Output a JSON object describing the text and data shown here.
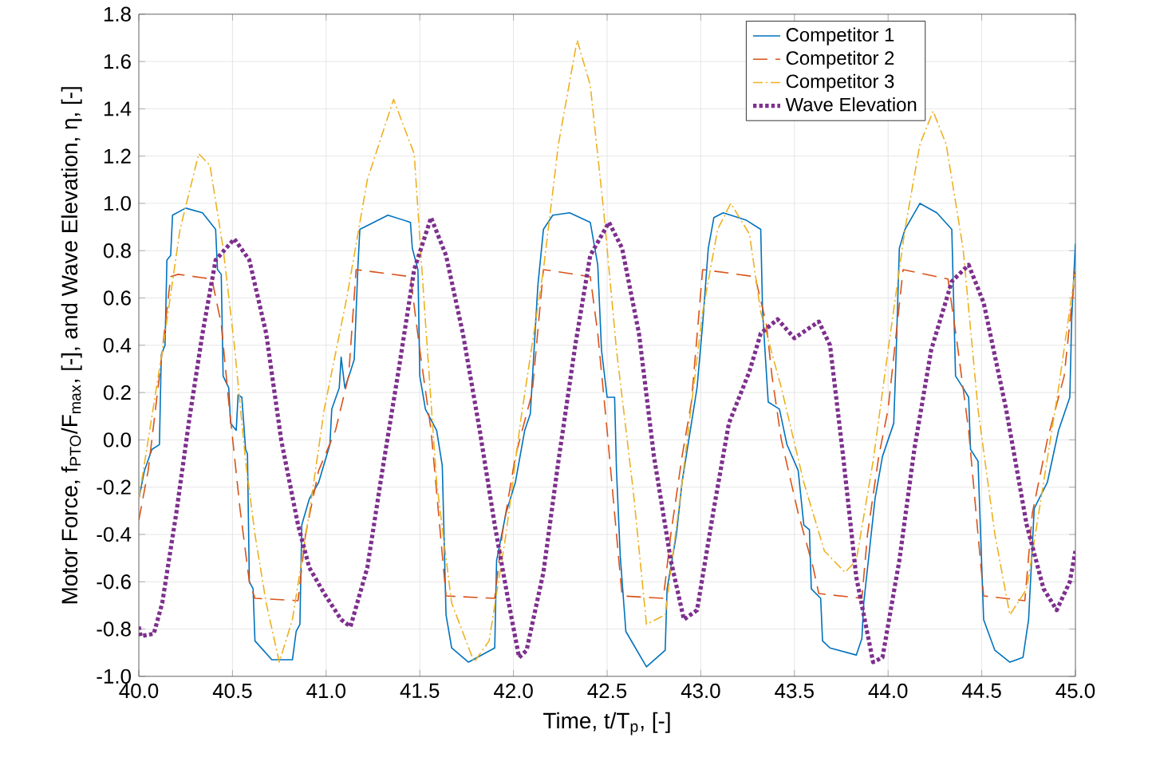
{
  "chart_data": {
    "type": "line",
    "xlabel": "Time, t/T$_{p}$, [-]",
    "ylabel": "Motor Force, f$_{PTO}$/F$_{max}$, [-], and Wave Elevation, η, [-]",
    "xlim": [
      40,
      45
    ],
    "ylim": [
      -1.0,
      1.8
    ],
    "xticks": [
      {
        "value": 40,
        "label": "40.0"
      },
      {
        "value": 40.5,
        "label": "40.5"
      },
      {
        "value": 41,
        "label": "41.0"
      },
      {
        "value": 41.5,
        "label": "41.5"
      },
      {
        "value": 42,
        "label": "42.0"
      },
      {
        "value": 42.5,
        "label": "42.5"
      },
      {
        "value": 43,
        "label": "43.0"
      },
      {
        "value": 43.5,
        "label": "43.5"
      },
      {
        "value": 44,
        "label": "44.0"
      },
      {
        "value": 44.5,
        "label": "44.5"
      },
      {
        "value": 45,
        "label": "45.0"
      }
    ],
    "yticks": [
      {
        "value": -1.0,
        "label": "-1.0"
      },
      {
        "value": -0.8,
        "label": "-0.8"
      },
      {
        "value": -0.6,
        "label": "-0.6"
      },
      {
        "value": -0.4,
        "label": "-0.4"
      },
      {
        "value": -0.2,
        "label": "-0.2"
      },
      {
        "value": 0,
        "label": "0.0"
      },
      {
        "value": 0.2,
        "label": "0.2"
      },
      {
        "value": 0.4,
        "label": "0.4"
      },
      {
        "value": 0.6,
        "label": "0.6"
      },
      {
        "value": 0.8,
        "label": "0.8"
      },
      {
        "value": 1.0,
        "label": "1.0"
      },
      {
        "value": 1.2,
        "label": "1.2"
      },
      {
        "value": 1.4,
        "label": "1.4"
      },
      {
        "value": 1.6,
        "label": "1.6"
      },
      {
        "value": 1.8,
        "label": "1.8"
      }
    ],
    "grid": true,
    "legend": "top right",
    "series": [
      {
        "name": "Competitor 1",
        "color": "#0072bd",
        "line_style": "solid",
        "x": [
          40.0,
          40.03,
          40.07,
          40.11,
          40.12,
          40.14,
          40.15,
          40.17,
          40.18,
          40.25,
          40.34,
          40.41,
          40.42,
          40.44,
          40.45,
          40.48,
          40.49,
          40.52,
          40.53,
          40.55,
          40.57,
          40.58,
          40.59,
          40.61,
          40.62,
          40.71,
          40.82,
          40.84,
          40.86,
          40.87,
          40.91,
          40.96,
          41.02,
          41.03,
          41.07,
          41.08,
          41.1,
          41.13,
          41.15,
          41.17,
          41.18,
          41.33,
          41.45,
          41.46,
          41.49,
          41.5,
          41.53,
          41.59,
          41.62,
          41.64,
          41.67,
          41.76,
          41.9,
          41.91,
          41.96,
          42.01,
          42.06,
          42.09,
          42.13,
          42.16,
          42.21,
          42.3,
          42.41,
          42.45,
          42.47,
          42.5,
          42.54,
          42.55,
          42.57,
          42.6,
          42.71,
          42.81,
          42.82,
          42.87,
          42.9,
          42.94,
          42.98,
          43.01,
          43.04,
          43.07,
          43.12,
          43.24,
          43.32,
          43.33,
          43.36,
          43.42,
          43.46,
          43.52,
          43.55,
          43.58,
          43.59,
          43.64,
          43.65,
          43.69,
          43.83,
          43.86,
          43.87,
          43.93,
          43.97,
          44.03,
          44.04,
          44.06,
          44.09,
          44.17,
          44.26,
          44.34,
          44.36,
          44.4,
          44.43,
          44.44,
          44.48,
          44.51,
          44.57,
          44.65,
          44.72,
          44.75,
          44.78,
          44.85,
          44.91,
          44.97,
          44.98,
          45.0
        ],
        "values": [
          -0.25,
          -0.13,
          -0.04,
          -0.02,
          0.36,
          0.4,
          0.76,
          0.78,
          0.95,
          0.98,
          0.96,
          0.89,
          0.72,
          0.7,
          0.27,
          0.22,
          0.07,
          0.04,
          0.19,
          0.18,
          -0.04,
          -0.06,
          -0.6,
          -0.63,
          -0.85,
          -0.93,
          -0.93,
          -0.81,
          -0.78,
          -0.36,
          -0.25,
          -0.18,
          -0.02,
          0.13,
          0.22,
          0.35,
          0.22,
          0.29,
          0.34,
          0.74,
          0.89,
          0.95,
          0.92,
          0.81,
          0.72,
          0.27,
          0.13,
          0.04,
          -0.11,
          -0.74,
          -0.88,
          -0.94,
          -0.88,
          -0.51,
          -0.31,
          -0.18,
          0.04,
          0.11,
          0.65,
          0.89,
          0.95,
          0.96,
          0.92,
          0.74,
          0.38,
          0.18,
          0.18,
          -0.13,
          -0.49,
          -0.81,
          -0.96,
          -0.89,
          -0.63,
          -0.4,
          -0.18,
          0.02,
          0.22,
          0.49,
          0.81,
          0.94,
          0.96,
          0.93,
          0.89,
          0.54,
          0.16,
          0.13,
          -0.02,
          -0.13,
          -0.36,
          -0.38,
          -0.63,
          -0.67,
          -0.85,
          -0.88,
          -0.91,
          -0.84,
          -0.69,
          -0.25,
          -0.07,
          0.07,
          0.29,
          0.81,
          0.89,
          1.0,
          0.96,
          0.89,
          0.27,
          0.22,
          0.18,
          -0.04,
          -0.09,
          -0.76,
          -0.89,
          -0.94,
          -0.92,
          -0.76,
          -0.29,
          -0.18,
          0.04,
          0.18,
          0.51,
          0.83
        ]
      },
      {
        "name": "Competitor 2",
        "color": "#d95319",
        "line_style": "dashed",
        "x": [
          40.0,
          40.05,
          40.11,
          40.17,
          40.21,
          40.39,
          40.44,
          40.48,
          40.54,
          40.59,
          40.62,
          40.85,
          40.89,
          40.96,
          41.05,
          41.12,
          41.16,
          41.45,
          41.5,
          41.56,
          41.64,
          41.9,
          41.94,
          42.01,
          42.1,
          42.16,
          42.41,
          42.45,
          42.5,
          42.55,
          42.58,
          42.8,
          42.84,
          42.9,
          42.95,
          43.01,
          43.29,
          43.35,
          43.38,
          43.43,
          43.52,
          43.6,
          43.63,
          43.86,
          43.89,
          43.95,
          44.0,
          44.08,
          44.32,
          44.37,
          44.43,
          44.48,
          44.51,
          44.73,
          44.77,
          44.85,
          44.94,
          45.0
        ],
        "values": [
          -0.34,
          -0.13,
          0.27,
          0.69,
          0.7,
          0.68,
          0.49,
          0.16,
          -0.29,
          -0.6,
          -0.67,
          -0.68,
          -0.4,
          -0.13,
          0.04,
          0.27,
          0.72,
          0.69,
          0.38,
          0.04,
          -0.66,
          -0.67,
          -0.4,
          -0.07,
          0.2,
          0.72,
          0.69,
          0.45,
          0.04,
          -0.4,
          -0.66,
          -0.67,
          -0.4,
          -0.07,
          0.16,
          0.72,
          0.69,
          0.49,
          0.27,
          0.0,
          -0.31,
          -0.54,
          -0.65,
          -0.67,
          -0.4,
          -0.07,
          0.13,
          0.72,
          0.68,
          0.4,
          0.04,
          -0.4,
          -0.66,
          -0.68,
          -0.31,
          0.0,
          0.27,
          0.72
        ]
      },
      {
        "name": "Competitor 3",
        "color": "#edb120",
        "line_style": "dashdot",
        "x": [
          40.0,
          40.05,
          40.14,
          40.22,
          40.32,
          40.38,
          40.45,
          40.51,
          40.57,
          40.62,
          40.68,
          40.75,
          40.82,
          40.91,
          40.99,
          41.11,
          41.22,
          41.36,
          41.47,
          41.53,
          41.59,
          41.67,
          41.79,
          41.87,
          41.96,
          42.04,
          42.16,
          42.24,
          42.34,
          42.41,
          42.48,
          42.55,
          42.64,
          42.71,
          42.81,
          42.9,
          43.01,
          43.09,
          43.16,
          43.26,
          43.32,
          43.43,
          43.55,
          43.66,
          43.77,
          43.83,
          43.92,
          44.0,
          44.09,
          44.17,
          44.24,
          44.31,
          44.4,
          44.48,
          44.57,
          44.65,
          44.74,
          44.83,
          44.91,
          45.0
        ],
        "values": [
          -0.25,
          0.0,
          0.45,
          0.89,
          1.21,
          1.16,
          0.81,
          0.4,
          -0.09,
          -0.4,
          -0.69,
          -0.94,
          -0.76,
          -0.31,
          0.13,
          0.6,
          1.1,
          1.44,
          1.21,
          0.5,
          -0.18,
          -0.69,
          -0.94,
          -0.85,
          -0.4,
          0.09,
          0.72,
          1.25,
          1.69,
          1.5,
          0.98,
          0.38,
          -0.22,
          -0.78,
          -0.74,
          -0.18,
          0.54,
          0.89,
          1.0,
          0.87,
          0.54,
          0.22,
          -0.18,
          -0.47,
          -0.56,
          -0.51,
          -0.09,
          0.38,
          0.89,
          1.25,
          1.39,
          1.25,
          0.81,
          0.13,
          -0.4,
          -0.74,
          -0.63,
          -0.18,
          0.22,
          0.72
        ]
      },
      {
        "name": "Wave Elevation",
        "color": "#7e2f8e",
        "line_style": "dotted",
        "x": [
          40.0,
          40.01,
          40.08,
          40.125,
          40.2,
          40.27,
          40.34,
          40.41,
          40.51,
          40.59,
          40.68,
          40.76,
          40.85,
          40.91,
          40.99,
          41.08,
          41.13,
          41.22,
          41.3,
          41.39,
          41.47,
          41.56,
          41.64,
          41.73,
          41.82,
          41.9,
          41.97,
          42.03,
          42.07,
          42.16,
          42.24,
          42.33,
          42.41,
          42.51,
          42.58,
          42.67,
          42.75,
          42.84,
          42.91,
          42.98,
          43.07,
          43.15,
          43.26,
          43.32,
          43.41,
          43.5,
          43.63,
          43.69,
          43.76,
          43.83,
          43.92,
          43.97,
          44.06,
          44.14,
          44.23,
          44.34,
          44.43,
          44.51,
          44.63,
          44.74,
          44.83,
          44.9,
          44.97,
          45.0
        ],
        "values": [
          -0.79,
          -0.83,
          -0.82,
          -0.69,
          -0.31,
          0.09,
          0.45,
          0.76,
          0.85,
          0.76,
          0.45,
          0.0,
          -0.36,
          -0.54,
          -0.65,
          -0.76,
          -0.79,
          -0.54,
          -0.13,
          0.31,
          0.72,
          0.94,
          0.78,
          0.45,
          0.04,
          -0.36,
          -0.67,
          -0.92,
          -0.89,
          -0.56,
          -0.09,
          0.4,
          0.78,
          0.92,
          0.81,
          0.45,
          -0.07,
          -0.51,
          -0.76,
          -0.72,
          -0.29,
          0.07,
          0.29,
          0.45,
          0.51,
          0.43,
          0.5,
          0.4,
          -0.07,
          -0.58,
          -0.94,
          -0.92,
          -0.51,
          -0.04,
          0.38,
          0.67,
          0.74,
          0.58,
          0.13,
          -0.36,
          -0.63,
          -0.72,
          -0.6,
          -0.47
        ]
      }
    ]
  }
}
